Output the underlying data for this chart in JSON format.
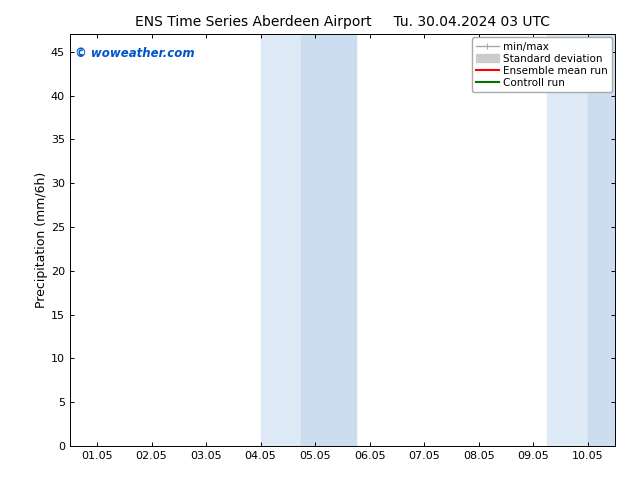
{
  "title_left": "ENS Time Series Aberdeen Airport",
  "title_right": "Tu. 30.04.2024 03 UTC",
  "ylabel": "Precipitation (mm/6h)",
  "watermark": "© woweather.com",
  "watermark_color": "#0055cc",
  "background_color": "#ffffff",
  "plot_bg_color": "#ffffff",
  "ylim": [
    0,
    47
  ],
  "yticks": [
    0,
    5,
    10,
    15,
    20,
    25,
    30,
    35,
    40,
    45
  ],
  "xtick_labels": [
    "01.05",
    "02.05",
    "03.05",
    "04.05",
    "05.05",
    "06.05",
    "07.05",
    "08.05",
    "09.05",
    "10.05"
  ],
  "xtick_positions": [
    0,
    1,
    2,
    3,
    4,
    5,
    6,
    7,
    8,
    9
  ],
  "xlim": [
    -0.5,
    9.5
  ],
  "shaded_regions": [
    {
      "x_start": 3.0,
      "x_end": 3.5,
      "color": "#dce9f5"
    },
    {
      "x_start": 3.5,
      "x_end": 4.5,
      "color": "#e0edf8"
    },
    {
      "x_start": 4.5,
      "x_end": 5.5,
      "color": "#d5e5f2"
    },
    {
      "x_start": 8.5,
      "x_end": 9.0,
      "color": "#dce9f5"
    },
    {
      "x_start": 9.0,
      "x_end": 9.5,
      "color": "#d5e5f2"
    }
  ],
  "legend_entries": [
    {
      "label": "min/max",
      "color": "#aaaaaa",
      "lw": 1.0
    },
    {
      "label": "Standard deviation",
      "color": "#cccccc",
      "lw": 5
    },
    {
      "label": "Ensemble mean run",
      "color": "#ff0000",
      "lw": 1.5
    },
    {
      "label": "Controll run",
      "color": "#007700",
      "lw": 1.5
    }
  ],
  "title_fontsize": 10,
  "axis_label_fontsize": 9,
  "tick_fontsize": 8,
  "legend_fontsize": 7.5
}
